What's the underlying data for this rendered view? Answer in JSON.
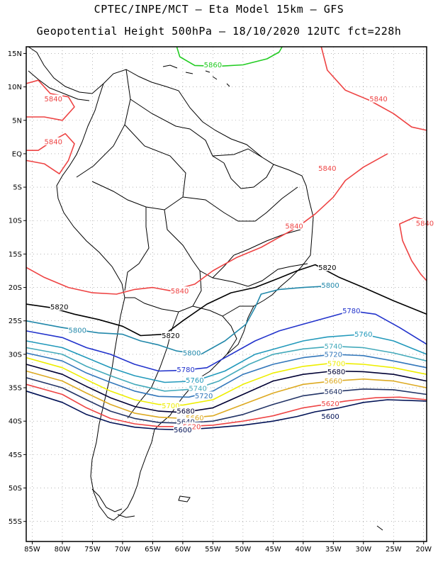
{
  "header": {
    "title_line1": "CPTEC/INPE/MCT –  Eta Model 15km – GFS",
    "title_line2": "Geopotential Height 500hPa – 18/10/2020 12UTC fct=228h"
  },
  "map": {
    "lon_range": [
      -86,
      -19.5
    ],
    "lat_range": [
      -58,
      16
    ],
    "grid": true,
    "x_ticks": [
      {
        "lon": -85,
        "label": "85W"
      },
      {
        "lon": -80,
        "label": "80W"
      },
      {
        "lon": -75,
        "label": "75W"
      },
      {
        "lon": -70,
        "label": "70W"
      },
      {
        "lon": -65,
        "label": "65W"
      },
      {
        "lon": -60,
        "label": "60W"
      },
      {
        "lon": -55,
        "label": "55W"
      },
      {
        "lon": -50,
        "label": "50W"
      },
      {
        "lon": -45,
        "label": "45W"
      },
      {
        "lon": -40,
        "label": "40W"
      },
      {
        "lon": -35,
        "label": "35W"
      },
      {
        "lon": -30,
        "label": "30W"
      },
      {
        "lon": -25,
        "label": "25W"
      },
      {
        "lon": -20,
        "label": "20W"
      }
    ],
    "y_ticks": [
      {
        "lat": 15,
        "label": "15N"
      },
      {
        "lat": 10,
        "label": "10N"
      },
      {
        "lat": 5,
        "label": "5N"
      },
      {
        "lat": 0,
        "label": "EQ"
      },
      {
        "lat": -5,
        "label": "5S"
      },
      {
        "lat": -10,
        "label": "10S"
      },
      {
        "lat": -15,
        "label": "15S"
      },
      {
        "lat": -20,
        "label": "20S"
      },
      {
        "lat": -25,
        "label": "25S"
      },
      {
        "lat": -30,
        "label": "30S"
      },
      {
        "lat": -35,
        "label": "35S"
      },
      {
        "lat": -40,
        "label": "40S"
      },
      {
        "lat": -45,
        "label": "45S"
      },
      {
        "lat": -50,
        "label": "50S"
      },
      {
        "lat": -55,
        "label": "55S"
      }
    ]
  },
  "contours": [
    {
      "value": "5860",
      "color": "#22cc22",
      "points": [
        [
          -61,
          16
        ],
        [
          -60.5,
          14.5
        ],
        [
          -58,
          13.2
        ],
        [
          -54,
          13.1
        ],
        [
          -50,
          13.3
        ],
        [
          -46,
          14.2
        ],
        [
          -44,
          15.2
        ],
        [
          -43.5,
          16
        ]
      ],
      "labels": [
        {
          "text": "5860",
          "lon": -55,
          "lat": 13.3
        }
      ]
    },
    {
      "value": "5840",
      "color": "#ee4444",
      "points": [
        [
          -86,
          -17
        ],
        [
          -83,
          -18.5
        ],
        [
          -79,
          -20
        ],
        [
          -75,
          -20.8
        ],
        [
          -71,
          -21
        ],
        [
          -68,
          -20.3
        ],
        [
          -65,
          -20
        ],
        [
          -62,
          -20.5
        ],
        [
          -58,
          -19.5
        ],
        [
          -55,
          -17.5
        ],
        [
          -51,
          -15.5
        ],
        [
          -47,
          -14
        ],
        [
          -44,
          -12.5
        ],
        [
          -41,
          -11
        ],
        [
          -38,
          -9
        ],
        [
          -35,
          -6.5
        ],
        [
          -33,
          -4
        ],
        [
          -30,
          -2
        ],
        [
          -26,
          0
        ]
      ],
      "labels": [
        {
          "text": "5840",
          "lon": -60.5,
          "lat": -20.5
        },
        {
          "text": "5840",
          "lon": -41.5,
          "lat": -10.8
        },
        {
          "text": "5840",
          "lon": -36,
          "lat": -2.2
        }
      ]
    },
    {
      "value": "5840",
      "color": "#ee4444",
      "points": [
        [
          -86,
          10.5
        ],
        [
          -84,
          11
        ],
        [
          -82,
          9
        ],
        [
          -79,
          8.5
        ],
        [
          -78,
          7
        ],
        [
          -80,
          5
        ],
        [
          -83,
          5.5
        ],
        [
          -86,
          5.5
        ]
      ],
      "labels": [
        {
          "text": "5840",
          "lon": -81.5,
          "lat": 8.2
        }
      ]
    },
    {
      "value": "5840",
      "color": "#ee4444",
      "points": [
        [
          -86,
          -1
        ],
        [
          -83,
          -1.5
        ],
        [
          -80.5,
          -3
        ],
        [
          -79,
          -1
        ],
        [
          -78,
          1.5
        ],
        [
          -79.5,
          3
        ],
        [
          -81.5,
          2
        ],
        [
          -84,
          0.5
        ],
        [
          -86,
          0.5
        ]
      ],
      "labels": [
        {
          "text": "5840",
          "lon": -81.5,
          "lat": 1.8
        }
      ]
    },
    {
      "value": "5840",
      "color": "#ee4444",
      "points": [
        [
          -37,
          16
        ],
        [
          -36,
          12.5
        ],
        [
          -33,
          9.5
        ],
        [
          -29,
          8
        ],
        [
          -25,
          6
        ],
        [
          -22,
          4
        ],
        [
          -19.5,
          3.5
        ]
      ],
      "labels": [
        {
          "text": "5840",
          "lon": -27.5,
          "lat": 8.2
        }
      ]
    },
    {
      "value": "5840",
      "color": "#ee4444",
      "points": [
        [
          -19.5,
          -10
        ],
        [
          -21.5,
          -9.5
        ],
        [
          -24,
          -10.5
        ],
        [
          -23.5,
          -13
        ],
        [
          -22,
          -16
        ],
        [
          -20.5,
          -18
        ],
        [
          -19.5,
          -19
        ]
      ],
      "labels": [
        {
          "text": "5840",
          "lon": -19.8,
          "lat": -10.4
        }
      ]
    },
    {
      "value": "5820",
      "color": "#000000",
      "points": [
        [
          -86,
          -22.5
        ],
        [
          -82,
          -23
        ],
        [
          -78,
          -24
        ],
        [
          -74,
          -24.8
        ],
        [
          -70,
          -25.8
        ],
        [
          -67,
          -27.2
        ],
        [
          -63,
          -27
        ],
        [
          -60,
          -25
        ],
        [
          -56,
          -22.5
        ],
        [
          -52,
          -20.8
        ],
        [
          -48,
          -20
        ],
        [
          -44,
          -18.6
        ],
        [
          -41,
          -17.5
        ],
        [
          -38,
          -16.6
        ],
        [
          -34,
          -18.5
        ],
        [
          -30,
          -20
        ],
        [
          -25,
          -22
        ],
        [
          -19.5,
          -24
        ]
      ],
      "labels": [
        {
          "text": "5820",
          "lon": -80.5,
          "lat": -22.9
        },
        {
          "text": "5820",
          "lon": -62,
          "lat": -27.2
        },
        {
          "text": "5820",
          "lon": -36,
          "lat": -17
        }
      ]
    },
    {
      "value": "5800",
      "color": "#2288aa",
      "points": [
        [
          -86,
          -25
        ],
        [
          -80,
          -26
        ],
        [
          -74,
          -26.8
        ],
        [
          -70,
          -27
        ],
        [
          -67,
          -28
        ],
        [
          -64,
          -28.6
        ],
        [
          -61,
          -29.5
        ],
        [
          -57,
          -30
        ],
        [
          -53,
          -28
        ],
        [
          -49.5,
          -25.5
        ],
        [
          -48,
          -23
        ],
        [
          -47,
          -21
        ],
        [
          -44,
          -20.3
        ],
        [
          -40,
          -20
        ],
        [
          -36,
          -19.8
        ]
      ],
      "labels": [
        {
          "text": "5800",
          "lon": -77.5,
          "lat": -26.4
        },
        {
          "text": "5800",
          "lon": -58.5,
          "lat": -29.8
        },
        {
          "text": "5800",
          "lon": -35.5,
          "lat": -19.7
        }
      ]
    },
    {
      "value": "5780",
      "color": "#2233cc",
      "points": [
        [
          -86,
          -26.5
        ],
        [
          -80,
          -27.5
        ],
        [
          -76,
          -29
        ],
        [
          -72,
          -30
        ],
        [
          -68,
          -31.5
        ],
        [
          -64,
          -32.5
        ],
        [
          -60,
          -32.4
        ],
        [
          -56,
          -32
        ],
        [
          -52,
          -30
        ],
        [
          -48,
          -28
        ],
        [
          -44,
          -26.5
        ],
        [
          -40,
          -25.5
        ],
        [
          -36,
          -24.5
        ],
        [
          -32,
          -23.5
        ],
        [
          -28,
          -24
        ],
        [
          -24,
          -26
        ],
        [
          -19.5,
          -28.5
        ]
      ],
      "labels": [
        {
          "text": "5780",
          "lon": -59.5,
          "lat": -32.3
        },
        {
          "text": "5780",
          "lon": -32,
          "lat": -23.5
        }
      ]
    },
    {
      "value": "5760",
      "color": "#2299bb",
      "points": [
        [
          -86,
          -28
        ],
        [
          -80,
          -29
        ],
        [
          -76,
          -30.5
        ],
        [
          -72,
          -32
        ],
        [
          -68,
          -33.2
        ],
        [
          -63,
          -34.2
        ],
        [
          -58,
          -34
        ],
        [
          -53,
          -32.5
        ],
        [
          -48,
          -30
        ],
        [
          -44,
          -29
        ],
        [
          -40,
          -28
        ],
        [
          -36,
          -27.4
        ],
        [
          -30,
          -27
        ],
        [
          -25,
          -28
        ],
        [
          -19.5,
          -30
        ]
      ],
      "labels": [
        {
          "text": "5760",
          "lon": -58,
          "lat": -33.9
        },
        {
          "text": "5760",
          "lon": -30,
          "lat": -27
        }
      ]
    },
    {
      "value": "5740",
      "color": "#44aabb",
      "points": [
        [
          -86,
          -29
        ],
        [
          -80,
          -30
        ],
        [
          -76,
          -31.8
        ],
        [
          -72,
          -33.2
        ],
        [
          -68,
          -34.5
        ],
        [
          -63,
          -35.5
        ],
        [
          -58,
          -35.2
        ],
        [
          -54,
          -34
        ],
        [
          -49,
          -31.5
        ],
        [
          -45,
          -30
        ],
        [
          -40,
          -29.2
        ],
        [
          -35,
          -28.8
        ],
        [
          -30,
          -29
        ],
        [
          -25,
          -29.8
        ],
        [
          -19.5,
          -31
        ]
      ],
      "labels": [
        {
          "text": "5740",
          "lon": -57.5,
          "lat": -35.1
        },
        {
          "text": "5740",
          "lon": -35,
          "lat": -28.8
        }
      ]
    },
    {
      "value": "5720",
      "color": "#3377bb",
      "points": [
        [
          -86,
          -29.8
        ],
        [
          -80,
          -31
        ],
        [
          -76,
          -32.8
        ],
        [
          -72,
          -34.2
        ],
        [
          -68,
          -35.5
        ],
        [
          -64,
          -36.3
        ],
        [
          -59,
          -36.4
        ],
        [
          -55,
          -35.5
        ],
        [
          -50,
          -33
        ],
        [
          -45,
          -31.5
        ],
        [
          -40,
          -30.5
        ],
        [
          -35,
          -30
        ],
        [
          -30,
          -30.2
        ],
        [
          -25,
          -31
        ],
        [
          -19.5,
          -32
        ]
      ],
      "labels": [
        {
          "text": "5720",
          "lon": -56.5,
          "lat": -36.2
        },
        {
          "text": "5720",
          "lon": -35,
          "lat": -30
        }
      ]
    },
    {
      "value": "5700",
      "color": "#eeee00",
      "points": [
        [
          -86,
          -30.5
        ],
        [
          -80,
          -32
        ],
        [
          -76,
          -33.8
        ],
        [
          -72,
          -35.5
        ],
        [
          -68,
          -36.8
        ],
        [
          -64,
          -37.5
        ],
        [
          -60,
          -37.6
        ],
        [
          -55,
          -36.8
        ],
        [
          -50,
          -34.5
        ],
        [
          -45,
          -32.8
        ],
        [
          -40,
          -31.8
        ],
        [
          -35,
          -31.3
        ],
        [
          -30,
          -31.5
        ],
        [
          -25,
          -32
        ],
        [
          -19.5,
          -33
        ]
      ],
      "labels": [
        {
          "text": "5700",
          "lon": -62,
          "lat": -37.7
        },
        {
          "text": "5700",
          "lon": -34.5,
          "lat": -31.4
        }
      ]
    },
    {
      "value": "5680",
      "color": "#000033",
      "points": [
        [
          -86,
          -31.5
        ],
        [
          -80,
          -33
        ],
        [
          -76,
          -34.8
        ],
        [
          -72,
          -36.5
        ],
        [
          -68,
          -37.8
        ],
        [
          -64,
          -38.5
        ],
        [
          -60,
          -38.7
        ],
        [
          -55,
          -38
        ],
        [
          -50,
          -36
        ],
        [
          -45,
          -34
        ],
        [
          -40,
          -33
        ],
        [
          -35,
          -32.5
        ],
        [
          -30,
          -32.6
        ],
        [
          -25,
          -33
        ],
        [
          -19.5,
          -34
        ]
      ],
      "labels": [
        {
          "text": "5680",
          "lon": -59.5,
          "lat": -38.5
        },
        {
          "text": "5680",
          "lon": -34.5,
          "lat": -32.6
        }
      ]
    },
    {
      "value": "5660",
      "color": "#ddaa22",
      "points": [
        [
          -86,
          -32.5
        ],
        [
          -80,
          -34
        ],
        [
          -76,
          -35.8
        ],
        [
          -72,
          -37.5
        ],
        [
          -68,
          -38.8
        ],
        [
          -64,
          -39.4
        ],
        [
          -60,
          -39.6
        ],
        [
          -55,
          -39.2
        ],
        [
          -50,
          -37.5
        ],
        [
          -45,
          -35.8
        ],
        [
          -40,
          -34.5
        ],
        [
          -35,
          -34
        ],
        [
          -30,
          -33.7
        ],
        [
          -25,
          -34
        ],
        [
          -19.5,
          -35
        ]
      ],
      "labels": [
        {
          "text": "5660",
          "lon": -58,
          "lat": -39.5
        },
        {
          "text": "5660",
          "lon": -35,
          "lat": -34
        }
      ]
    },
    {
      "value": "5640",
      "color": "#223366",
      "points": [
        [
          -86,
          -33.5
        ],
        [
          -80,
          -35
        ],
        [
          -76,
          -36.8
        ],
        [
          -72,
          -38.5
        ],
        [
          -68,
          -39.6
        ],
        [
          -64,
          -40.2
        ],
        [
          -60,
          -40.3
        ],
        [
          -55,
          -40
        ],
        [
          -50,
          -39
        ],
        [
          -45,
          -37.5
        ],
        [
          -40,
          -36.2
        ],
        [
          -35,
          -35.6
        ],
        [
          -30,
          -35.2
        ],
        [
          -25,
          -35.3
        ],
        [
          -19.5,
          -36
        ]
      ],
      "labels": [
        {
          "text": "5640",
          "lon": -59.5,
          "lat": -40.1
        },
        {
          "text": "5640",
          "lon": -35,
          "lat": -35.6
        }
      ]
    },
    {
      "value": "5620",
      "color": "#ee4444",
      "points": [
        [
          -86,
          -34.5
        ],
        [
          -80,
          -36
        ],
        [
          -76,
          -38
        ],
        [
          -72,
          -39.6
        ],
        [
          -68,
          -40.4
        ],
        [
          -64,
          -40.8
        ],
        [
          -60,
          -40.8
        ],
        [
          -55,
          -40.6
        ],
        [
          -50,
          -40
        ],
        [
          -45,
          -39.2
        ],
        [
          -40,
          -38
        ],
        [
          -37,
          -37.6
        ],
        [
          -33,
          -37
        ],
        [
          -28,
          -36.5
        ],
        [
          -24,
          -36.4
        ],
        [
          -19.5,
          -36.8
        ]
      ],
      "labels": [
        {
          "text": "5620",
          "lon": -58.5,
          "lat": -40.8
        },
        {
          "text": "5620",
          "lon": -35.5,
          "lat": -37.4
        }
      ]
    },
    {
      "value": "5600",
      "color": "#001155",
      "points": [
        [
          -86,
          -35.5
        ],
        [
          -80,
          -37.2
        ],
        [
          -76,
          -39
        ],
        [
          -72,
          -40.2
        ],
        [
          -68,
          -40.9
        ],
        [
          -64,
          -41.2
        ],
        [
          -60,
          -41.3
        ],
        [
          -55,
          -41
        ],
        [
          -50,
          -40.6
        ],
        [
          -45,
          -40
        ],
        [
          -41,
          -39.3
        ],
        [
          -38,
          -38.6
        ],
        [
          -34,
          -38
        ],
        [
          -30,
          -37.2
        ],
        [
          -26,
          -36.8
        ],
        [
          -19.5,
          -37
        ]
      ],
      "labels": [
        {
          "text": "5600",
          "lon": -60,
          "lat": -41.3
        },
        {
          "text": "5600",
          "lon": -35.5,
          "lat": -39.3
        }
      ]
    }
  ]
}
